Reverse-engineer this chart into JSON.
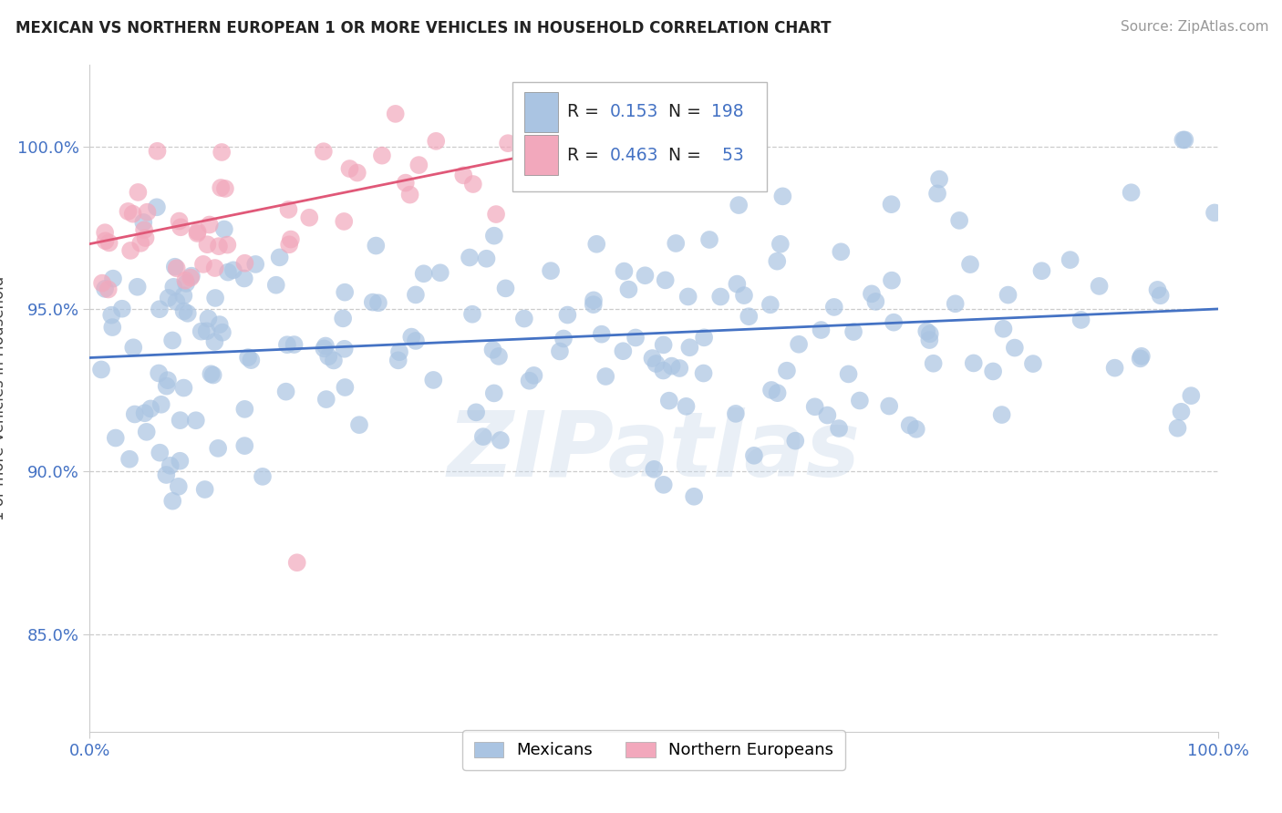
{
  "title": "MEXICAN VS NORTHERN EUROPEAN 1 OR MORE VEHICLES IN HOUSEHOLD CORRELATION CHART",
  "source": "Source: ZipAtlas.com",
  "ylabel": "1 or more Vehicles in Household",
  "mexican_R": 0.153,
  "mexican_N": 198,
  "northern_R": 0.463,
  "northern_N": 53,
  "mexican_color": "#aac4e2",
  "northern_color": "#f2a8bc",
  "mexican_line_color": "#4472c4",
  "northern_line_color": "#e05878",
  "legend_label_mexican": "Mexicans",
  "legend_label_northern": "Northern Europeans",
  "watermark": "ZIPatlas",
  "background_color": "#ffffff",
  "label_color": "#4472c4",
  "title_color": "#222222",
  "grid_color": "#cccccc",
  "yticks": [
    0.85,
    0.9,
    0.95,
    1.0
  ],
  "ytick_labels": [
    "85.0%",
    "90.0%",
    "95.0%",
    "100.0%"
  ],
  "ylim_low": 0.82,
  "ylim_high": 1.025,
  "xlim_low": 0.0,
  "xlim_high": 1.0,
  "mex_line_x0": 0.0,
  "mex_line_y0": 0.935,
  "mex_line_x1": 1.0,
  "mex_line_y1": 0.95,
  "nor_line_x0": 0.0,
  "nor_line_y0": 0.97,
  "nor_line_x1": 0.5,
  "nor_line_y1": 1.005
}
